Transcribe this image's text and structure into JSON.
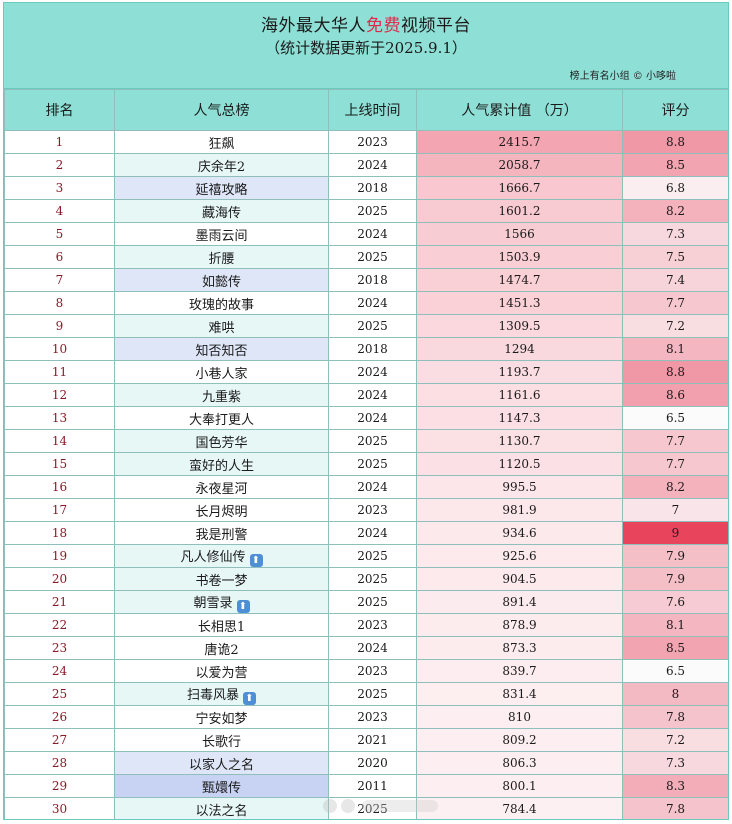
{
  "header": {
    "title_pre": "海外最大华人",
    "title_highlight": "免费",
    "title_post": "视频平台",
    "subtitle": "（统计数据更新于2025.9.1）",
    "credit": "榜上有名小组 © 小哆啦"
  },
  "columns": [
    "排名",
    "人气总榜",
    "上线时间",
    "人气累计值 （万）",
    "评分"
  ],
  "colors": {
    "header_bg": "#8ee0d6",
    "accent_red": "#e0284a",
    "max_score": "#e8445c"
  },
  "rows": [
    {
      "rank": "1",
      "name": "狂飙",
      "year": "2023",
      "value": "2415.7",
      "score": "8.8",
      "v": 2415.7,
      "s": 8.8,
      "hl": 0,
      "up": false
    },
    {
      "rank": "2",
      "name": "庆余年2",
      "year": "2024",
      "value": "2058.7",
      "score": "8.5",
      "v": 2058.7,
      "s": 8.5,
      "hl": 1,
      "up": false
    },
    {
      "rank": "3",
      "name": "延禧攻略",
      "year": "2018",
      "value": "1666.7",
      "score": "6.8",
      "v": 1666.7,
      "s": 6.8,
      "hl": 2,
      "up": false
    },
    {
      "rank": "4",
      "name": "藏海传",
      "year": "2025",
      "value": "1601.2",
      "score": "8.2",
      "v": 1601.2,
      "s": 8.2,
      "hl": 1,
      "up": false
    },
    {
      "rank": "5",
      "name": "墨雨云间",
      "year": "2024",
      "value": "1566",
      "score": "7.3",
      "v": 1566,
      "s": 7.3,
      "hl": 0,
      "up": false
    },
    {
      "rank": "6",
      "name": "折腰",
      "year": "2025",
      "value": "1503.9",
      "score": "7.5",
      "v": 1503.9,
      "s": 7.5,
      "hl": 1,
      "up": false
    },
    {
      "rank": "7",
      "name": "如懿传",
      "year": "2018",
      "value": "1474.7",
      "score": "7.4",
      "v": 1474.7,
      "s": 7.4,
      "hl": 2,
      "up": false
    },
    {
      "rank": "8",
      "name": "玫瑰的故事",
      "year": "2024",
      "value": "1451.3",
      "score": "7.7",
      "v": 1451.3,
      "s": 7.7,
      "hl": 0,
      "up": false
    },
    {
      "rank": "9",
      "name": "难哄",
      "year": "2025",
      "value": "1309.5",
      "score": "7.2",
      "v": 1309.5,
      "s": 7.2,
      "hl": 1,
      "up": false
    },
    {
      "rank": "10",
      "name": "知否知否",
      "year": "2018",
      "value": "1294",
      "score": "8.1",
      "v": 1294,
      "s": 8.1,
      "hl": 2,
      "up": false
    },
    {
      "rank": "11",
      "name": "小巷人家",
      "year": "2024",
      "value": "1193.7",
      "score": "8.8",
      "v": 1193.7,
      "s": 8.8,
      "hl": 0,
      "up": false
    },
    {
      "rank": "12",
      "name": "九重紫",
      "year": "2024",
      "value": "1161.6",
      "score": "8.6",
      "v": 1161.6,
      "s": 8.6,
      "hl": 1,
      "up": false
    },
    {
      "rank": "13",
      "name": "大奉打更人",
      "year": "2024",
      "value": "1147.3",
      "score": "6.5",
      "v": 1147.3,
      "s": 6.5,
      "hl": 0,
      "up": false
    },
    {
      "rank": "14",
      "name": "国色芳华",
      "year": "2025",
      "value": "1130.7",
      "score": "7.7",
      "v": 1130.7,
      "s": 7.7,
      "hl": 1,
      "up": false
    },
    {
      "rank": "15",
      "name": "蛮好的人生",
      "year": "2025",
      "value": "1120.5",
      "score": "7.7",
      "v": 1120.5,
      "s": 7.7,
      "hl": 1,
      "up": false
    },
    {
      "rank": "16",
      "name": "永夜星河",
      "year": "2024",
      "value": "995.5",
      "score": "8.2",
      "v": 995.5,
      "s": 8.2,
      "hl": 0,
      "up": false
    },
    {
      "rank": "17",
      "name": "长月烬明",
      "year": "2023",
      "value": "981.9",
      "score": "7",
      "v": 981.9,
      "s": 7.0,
      "hl": 0,
      "up": false
    },
    {
      "rank": "18",
      "name": "我是刑警",
      "year": "2024",
      "value": "934.6",
      "score": "9",
      "v": 934.6,
      "s": 9.0,
      "hl": 0,
      "up": false
    },
    {
      "rank": "19",
      "name": "凡人修仙传",
      "year": "2025",
      "value": "925.6",
      "score": "7.9",
      "v": 925.6,
      "s": 7.9,
      "hl": 1,
      "up": true
    },
    {
      "rank": "20",
      "name": "书卷一梦",
      "year": "2025",
      "value": "904.5",
      "score": "7.9",
      "v": 904.5,
      "s": 7.9,
      "hl": 1,
      "up": false
    },
    {
      "rank": "21",
      "name": "朝雪录",
      "year": "2025",
      "value": "891.4",
      "score": "7.6",
      "v": 891.4,
      "s": 7.6,
      "hl": 1,
      "up": true
    },
    {
      "rank": "22",
      "name": "长相思1",
      "year": "2023",
      "value": "878.9",
      "score": "8.1",
      "v": 878.9,
      "s": 8.1,
      "hl": 0,
      "up": false
    },
    {
      "rank": "23",
      "name": "唐诡2",
      "year": "2024",
      "value": "873.3",
      "score": "8.5",
      "v": 873.3,
      "s": 8.5,
      "hl": 0,
      "up": false
    },
    {
      "rank": "24",
      "name": "以爱为营",
      "year": "2023",
      "value": "839.7",
      "score": "6.5",
      "v": 839.7,
      "s": 6.5,
      "hl": 0,
      "up": false
    },
    {
      "rank": "25",
      "name": "扫毒风暴",
      "year": "2025",
      "value": "831.4",
      "score": "8",
      "v": 831.4,
      "s": 8.0,
      "hl": 1,
      "up": true
    },
    {
      "rank": "26",
      "name": "宁安如梦",
      "year": "2023",
      "value": "810",
      "score": "7.8",
      "v": 810,
      "s": 7.8,
      "hl": 0,
      "up": false
    },
    {
      "rank": "27",
      "name": "长歌行",
      "year": "2021",
      "value": "809.2",
      "score": "7.2",
      "v": 809.2,
      "s": 7.2,
      "hl": 0,
      "up": false
    },
    {
      "rank": "28",
      "name": "以家人之名",
      "year": "2020",
      "value": "806.3",
      "score": "7.3",
      "v": 806.3,
      "s": 7.3,
      "hl": 2,
      "up": false
    },
    {
      "rank": "29",
      "name": "甄嬛传",
      "year": "2011",
      "value": "800.1",
      "score": "8.3",
      "v": 800.1,
      "s": 8.3,
      "hl": 3,
      "up": false
    },
    {
      "rank": "30",
      "name": "以法之名",
      "year": "2025",
      "value": "784.4",
      "score": "7.8",
      "v": 784.4,
      "s": 7.8,
      "hl": 1,
      "up": false
    }
  ]
}
